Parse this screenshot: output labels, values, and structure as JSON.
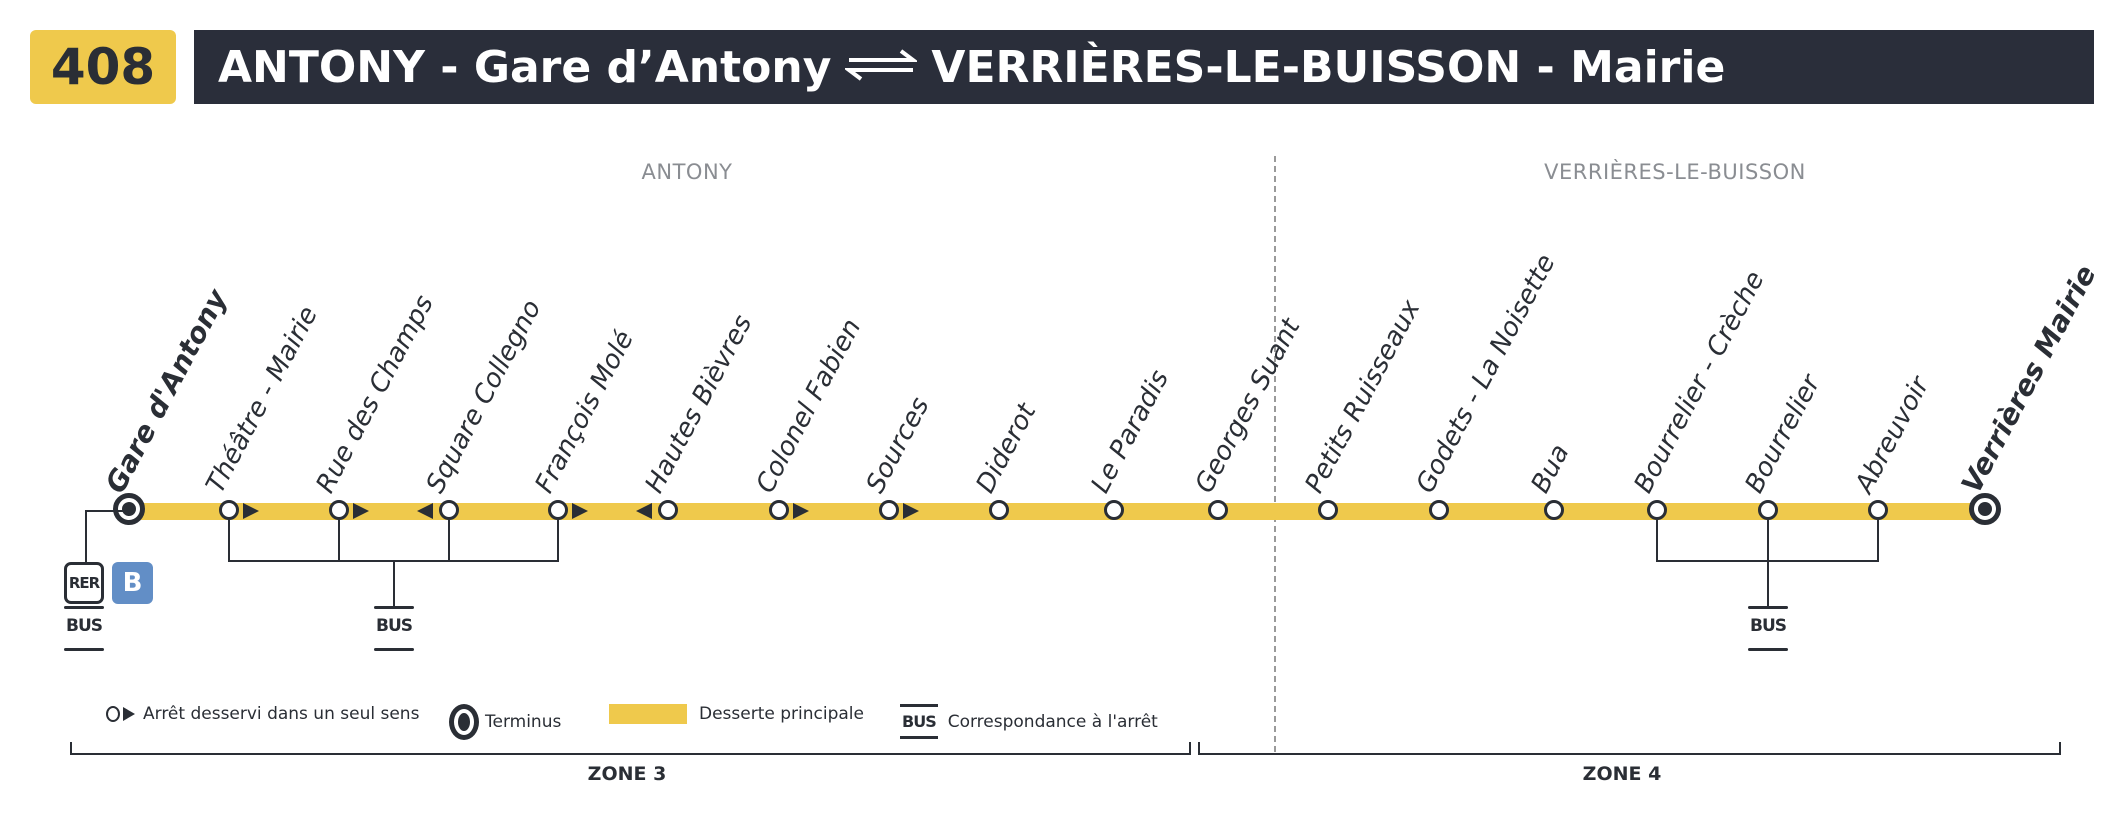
{
  "header": {
    "line_number": "408",
    "origin": "ANTONY - Gare d’Antony",
    "destination": "VERRIÈRES-LE-BUISSON - Mairie",
    "direction_icon": "two-way-arrows-icon"
  },
  "towns": [
    "ANTONY",
    "VERRIÈRES-LE-BUISSON"
  ],
  "colors": {
    "line": "#efc94c",
    "header_bg": "#2a2e3a",
    "rer_b": "#628ec6"
  },
  "stops": [
    {
      "name": "Gare d'Antony",
      "terminus": true
    },
    {
      "name": "Théâtre - Mairie",
      "arrow": "right"
    },
    {
      "name": "Rue des Champs",
      "arrow": "right"
    },
    {
      "name": "Square Collegno",
      "arrow": "left"
    },
    {
      "name": "François Molé",
      "arrow": "right"
    },
    {
      "name": "Hautes Bièvres",
      "arrow": "left"
    },
    {
      "name": "Colonel Fabien",
      "arrow": "right"
    },
    {
      "name": "Sources",
      "arrow": "right"
    },
    {
      "name": "Diderot"
    },
    {
      "name": "Le Paradis"
    },
    {
      "name": "Georges Suant"
    },
    {
      "name": "Petits Ruisseaux"
    },
    {
      "name": "Godets - La Noisette"
    },
    {
      "name": "Bua"
    },
    {
      "name": "Bourrelier - Crèche"
    },
    {
      "name": "Bourrelier"
    },
    {
      "name": "Abreuvoir"
    },
    {
      "name": "Verrières Mairie",
      "terminus": true
    }
  ],
  "connections": {
    "rer": "RER",
    "rer_line": "B",
    "bus": "BUS"
  },
  "legend": {
    "one_way": "Arrêt desservi dans un seul sens",
    "terminus": "Terminus",
    "main": "Desserte principale",
    "bus_symbol": "BUS",
    "bus": "Correspondance à l'arrêt"
  },
  "zones": [
    "ZONE 3",
    "ZONE 4"
  ]
}
